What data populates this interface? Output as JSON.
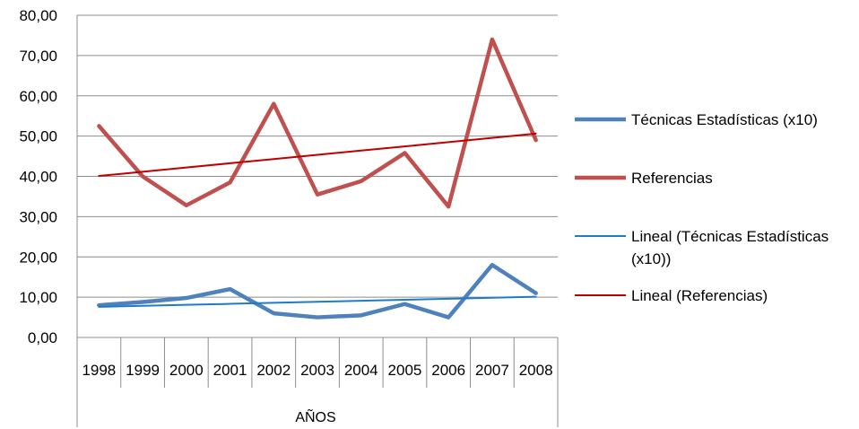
{
  "chart_data": {
    "type": "line",
    "xlabel": "AÑOS",
    "ylabel": "",
    "title": "",
    "ylim": [
      0,
      80
    ],
    "ytick_labels": [
      "0,00",
      "10,00",
      "20,00",
      "30,00",
      "40,00",
      "50,00",
      "60,00",
      "70,00",
      "80,00"
    ],
    "grid": "horizontal",
    "legend_position": "right",
    "categories": [
      "1998",
      "1999",
      "2000",
      "2001",
      "2002",
      "2003",
      "2004",
      "2005",
      "2006",
      "2007",
      "2008"
    ],
    "series": [
      {
        "name": "Técnicas Estadísticas (x10)",
        "color": "#4F81BD",
        "style": "thick",
        "values": [
          8.0,
          8.8,
          9.8,
          12.0,
          6.0,
          5.0,
          5.5,
          8.3,
          5.0,
          18.0,
          11.0
        ]
      },
      {
        "name": "Referencias",
        "color": "#C0504D",
        "style": "thick",
        "values": [
          52.5,
          40.0,
          32.8,
          38.5,
          58.0,
          35.5,
          38.8,
          45.8,
          32.5,
          74.0,
          49.0
        ]
      },
      {
        "name": "Lineal (Técnicas Estadísticas (x10))",
        "color": "#1F7BC8",
        "style": "thin",
        "values": [
          7.6,
          7.85,
          8.1,
          8.35,
          8.6,
          8.85,
          9.1,
          9.35,
          9.6,
          9.85,
          10.1
        ]
      },
      {
        "name": "Lineal (Referencias)",
        "color": "#C00000",
        "style": "thin",
        "values": [
          40.1,
          41.15,
          42.2,
          43.25,
          44.3,
          45.35,
          46.4,
          47.45,
          48.5,
          49.55,
          50.6
        ]
      }
    ],
    "legend_lines": [
      [
        "Técnicas Estadísticas (x10)"
      ],
      [
        "Referencias"
      ],
      [
        "Lineal (Técnicas Estadísticas",
        "(x10))"
      ],
      [
        "Lineal (Referencias)"
      ]
    ]
  }
}
